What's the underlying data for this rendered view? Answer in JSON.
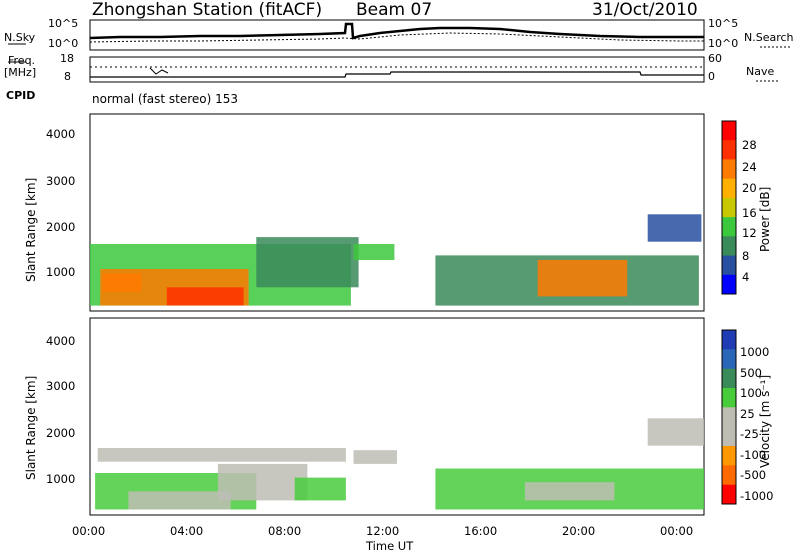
{
  "header": {
    "station": "Zhongshan Station (fitACF)",
    "beam": "Beam 07",
    "date": "31/Oct/2010"
  },
  "noise_panel": {
    "left_label": "N.Sky",
    "right_label": "N.Search",
    "left_ticks": [
      "10^5",
      "10^0"
    ],
    "right_ticks": [
      "10^5",
      "10^0"
    ]
  },
  "freq_panel": {
    "left_label_1": "Freq.",
    "left_label_2": "[MHz]",
    "right_label": "Nave",
    "left_ticks": [
      "18",
      "8"
    ],
    "right_ticks": [
      "60",
      "0"
    ]
  },
  "cpid": {
    "label": "CPID",
    "text": "normal (fast stereo)  153"
  },
  "x_axis": {
    "label": "Time UT",
    "ticks": [
      "00:00",
      "04:00",
      "08:00",
      "12:00",
      "16:00",
      "20:00",
      "00:00"
    ]
  },
  "power_panel": {
    "ylabel": "Slant Range [km]",
    "yticks": [
      "4000",
      "3000",
      "2000",
      "1000"
    ],
    "cbar_label": "Power [dB]",
    "cbar_ticks": [
      "28",
      "24",
      "20",
      "16",
      "12",
      "8",
      "4"
    ],
    "cbar_colors": [
      "#ff0000",
      "#ff3000",
      "#ff7a00",
      "#ffb000",
      "#c8c800",
      "#3cc83c",
      "#3a8a5a",
      "#284fa0",
      "#0000ff"
    ]
  },
  "velocity_panel": {
    "ylabel": "Slant Range [km]",
    "yticks": [
      "4000",
      "3000",
      "2000",
      "1000"
    ],
    "cbar_label": "Velocity [m s⁻¹]",
    "cbar_ticks": [
      "1000",
      "500",
      "100",
      "25",
      "-25",
      "-100",
      "-500",
      "-1000"
    ],
    "cbar_colors": [
      "#1f3cb4",
      "#2a66b8",
      "#3a8a5a",
      "#48cc3c",
      "#bdbdb4",
      "#bdbdb4",
      "#ff9800",
      "#ff6a00",
      "#ff0000"
    ]
  },
  "chart_data": {
    "type": "heatmap",
    "title": "Zhongshan Station (fitACF)  Beam 07  31/Oct/2010",
    "xlabel": "Time UT",
    "ylabel": "Slant Range [km]",
    "xlim": [
      "00:00",
      "24:00"
    ],
    "ylim": [
      180,
      4500
    ],
    "panels": [
      {
        "name": "Power",
        "units": "dB",
        "zlim": [
          0,
          32
        ],
        "regions": [
          {
            "t0": 0.0,
            "t1": 10.2,
            "r0": 300,
            "r1": 1650,
            "v": 12
          },
          {
            "t0": 0.4,
            "t1": 6.2,
            "r0": 300,
            "r1": 1100,
            "v": 22
          },
          {
            "t0": 3.0,
            "t1": 6.0,
            "r0": 300,
            "r1": 700,
            "v": 28
          },
          {
            "t0": 0.5,
            "t1": 2.0,
            "r0": 600,
            "r1": 1000,
            "v": 24
          },
          {
            "t0": 6.5,
            "t1": 10.5,
            "r0": 700,
            "r1": 1800,
            "v": 10
          },
          {
            "t0": 10.3,
            "t1": 11.9,
            "r0": 1300,
            "r1": 1650,
            "v": 14
          },
          {
            "t0": 13.5,
            "t1": 23.8,
            "r0": 300,
            "r1": 1400,
            "v": 10
          },
          {
            "t0": 17.5,
            "t1": 21.0,
            "r0": 500,
            "r1": 1300,
            "v": 22
          },
          {
            "t0": 21.8,
            "t1": 23.9,
            "r0": 1700,
            "r1": 2300,
            "v": 7
          }
        ]
      },
      {
        "name": "Velocity",
        "units": "m s-1",
        "zlim": [
          -1000,
          1000
        ],
        "regions": [
          {
            "t0": 0.2,
            "t1": 6.5,
            "r0": 300,
            "r1": 1100,
            "v": 120
          },
          {
            "t0": 1.5,
            "t1": 5.5,
            "r0": 300,
            "r1": 700,
            "v": -200
          },
          {
            "t0": 5.0,
            "t1": 8.5,
            "r0": 500,
            "r1": 1300,
            "v": -300
          },
          {
            "t0": 0.3,
            "t1": 10.0,
            "r0": 1350,
            "r1": 1650,
            "v": 0
          },
          {
            "t0": 8.0,
            "t1": 10.0,
            "r0": 500,
            "r1": 1000,
            "v": 200
          },
          {
            "t0": 10.3,
            "t1": 12.0,
            "r0": 1300,
            "r1": 1600,
            "v": 0
          },
          {
            "t0": 13.5,
            "t1": 24.0,
            "r0": 300,
            "r1": 1200,
            "v": 200
          },
          {
            "t0": 17.0,
            "t1": 20.5,
            "r0": 500,
            "r1": 900,
            "v": -300
          },
          {
            "t0": 21.8,
            "t1": 24.0,
            "r0": 1700,
            "r1": 2300,
            "v": 0
          }
        ]
      }
    ],
    "noise_sky": {
      "approx": "high plateau 10:00-16:00"
    },
    "grid": false
  }
}
